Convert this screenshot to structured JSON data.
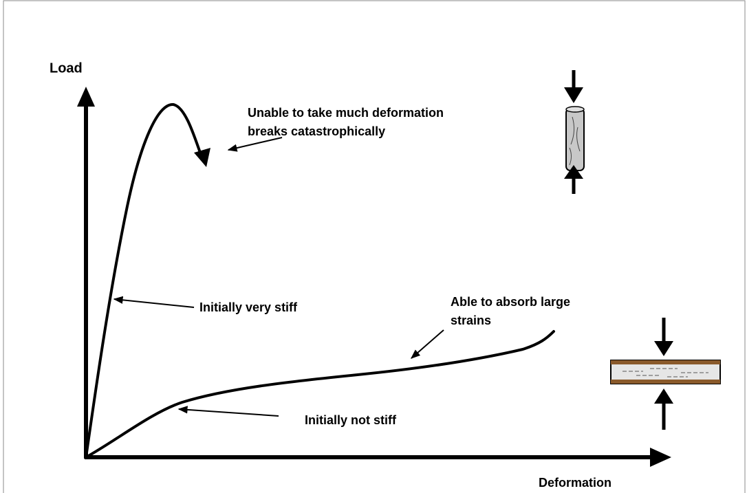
{
  "axes": {
    "y_label": "Load",
    "x_label": "Deformation"
  },
  "annotations": [
    {
      "lines": [
        "Unable to take much deformation",
        "breaks catastrophically"
      ]
    },
    {
      "lines": [
        "Initially very stiff"
      ]
    },
    {
      "lines": [
        "Able to absorb large",
        "strains"
      ]
    },
    {
      "lines": [
        "Initially not stiff"
      ]
    }
  ]
}
